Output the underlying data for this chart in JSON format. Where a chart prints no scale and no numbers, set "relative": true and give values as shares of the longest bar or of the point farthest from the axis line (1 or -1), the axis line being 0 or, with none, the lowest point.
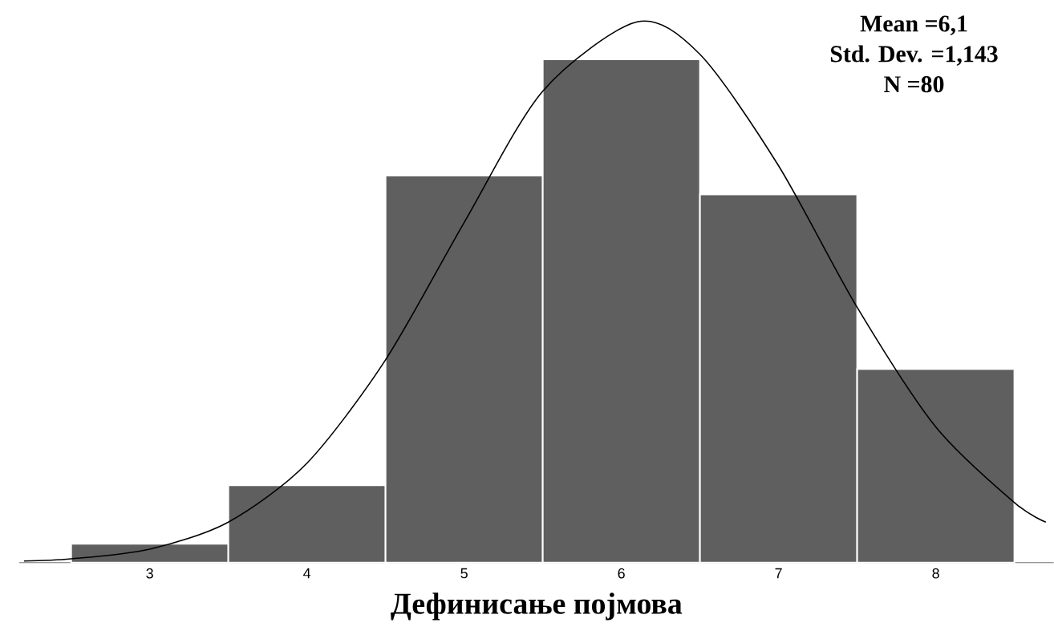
{
  "chart_data": {
    "type": "histogram",
    "relative": true,
    "xlabel": "Дефинисање појмова",
    "annotations": [
      "Mean =6,1",
      "Std. Dev. =1,143",
      "N =80"
    ],
    "xlim": [
      2.17,
      8.75
    ],
    "xticks": [
      3,
      4,
      5,
      6,
      7,
      8
    ],
    "grid": false,
    "series": [
      {
        "color": "#5f5f5f",
        "bins": [
          2.5,
          3.5,
          4.5,
          5.5,
          6.5,
          7.5,
          8.5
        ],
        "values": [
          0.035,
          0.143,
          0.716,
          0.931,
          0.681,
          0.358
        ]
      },
      {
        "type": "line",
        "color": "#000000",
        "x": [
          2.2,
          2.5,
          3,
          3.5,
          4,
          4.5,
          5,
          5.5,
          6.1,
          6.5,
          7,
          7.5,
          8,
          8.5,
          8.7
        ],
        "values": [
          0.003,
          0.007,
          0.025,
          0.075,
          0.184,
          0.375,
          0.629,
          0.872,
          1,
          0.94,
          0.734,
          0.472,
          0.251,
          0.111,
          0.075
        ]
      }
    ]
  }
}
